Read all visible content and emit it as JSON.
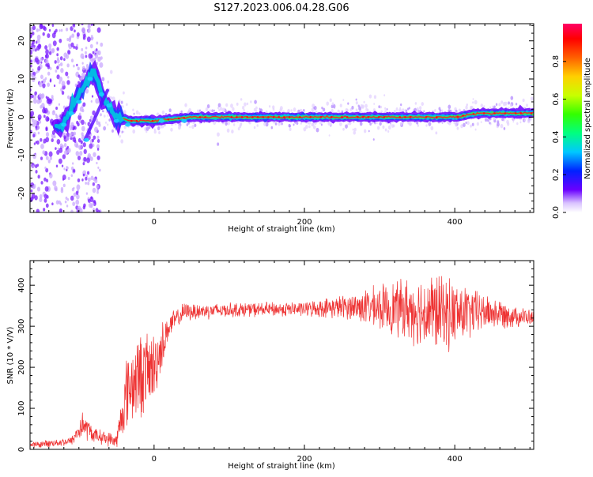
{
  "title": "S127.2023.006.04.28.G06",
  "colors": {
    "snr_line": "#ee3333",
    "frame": "#000000"
  },
  "chart_data": [
    {
      "type": "heatmap",
      "name": "spectrogram",
      "xlabel": "Height of straight line (km)",
      "ylabel": "Frequency (Hz)",
      "xlim": [
        -165,
        505
      ],
      "ylim": [
        -25,
        24.5
      ],
      "x_ticks": [
        0,
        200,
        400
      ],
      "y_ticks": [
        -20,
        -10,
        0,
        10,
        20
      ],
      "colorbar": {
        "label": "Normalized spectral amplitude",
        "range": [
          0,
          1
        ],
        "ticks": [
          "0.0",
          "0.2",
          "0.4",
          "0.6",
          "0.8"
        ],
        "colormap": "hsv-reversed (purple = low, red = high)"
      },
      "ridge": {
        "description": "dominant frequency track",
        "points": [
          {
            "x": -125,
            "y": -3
          },
          {
            "x": -110,
            "y": 2
          },
          {
            "x": -95,
            "y": 8
          },
          {
            "x": -80,
            "y": 12
          },
          {
            "x": -70,
            "y": 6
          },
          {
            "x": -60,
            "y": 3
          },
          {
            "x": -50,
            "y": 0
          },
          {
            "x": -30,
            "y": -1
          },
          {
            "x": 0,
            "y": -1
          },
          {
            "x": 50,
            "y": 0
          },
          {
            "x": 400,
            "y": 0
          },
          {
            "x": 430,
            "y": 1
          },
          {
            "x": 505,
            "y": 1
          }
        ]
      }
    },
    {
      "type": "line",
      "name": "snr",
      "xlabel": "Height of straight line (km)",
      "ylabel": "SNR (10 * V/V)",
      "xlim": [
        -165,
        505
      ],
      "ylim": [
        0,
        460
      ],
      "x_ticks": [
        0,
        200,
        400
      ],
      "y_ticks": [
        0,
        100,
        200,
        300,
        400
      ],
      "envelope": [
        {
          "x": -165,
          "mean": 10,
          "spread": 8
        },
        {
          "x": -110,
          "mean": 20,
          "spread": 12
        },
        {
          "x": -95,
          "mean": 60,
          "spread": 40
        },
        {
          "x": -80,
          "mean": 35,
          "spread": 20
        },
        {
          "x": -50,
          "mean": 20,
          "spread": 20
        },
        {
          "x": -35,
          "mean": 150,
          "spread": 110
        },
        {
          "x": -20,
          "mean": 180,
          "spread": 120
        },
        {
          "x": 0,
          "mean": 200,
          "spread": 100
        },
        {
          "x": 20,
          "mean": 300,
          "spread": 35
        },
        {
          "x": 40,
          "mean": 335,
          "spread": 25
        },
        {
          "x": 100,
          "mean": 340,
          "spread": 20
        },
        {
          "x": 200,
          "mean": 342,
          "spread": 20
        },
        {
          "x": 260,
          "mean": 348,
          "spread": 35
        },
        {
          "x": 320,
          "mean": 345,
          "spread": 75
        },
        {
          "x": 370,
          "mean": 335,
          "spread": 110
        },
        {
          "x": 400,
          "mean": 330,
          "spread": 95
        },
        {
          "x": 440,
          "mean": 335,
          "spread": 50
        },
        {
          "x": 505,
          "mean": 320,
          "spread": 20
        }
      ]
    }
  ]
}
